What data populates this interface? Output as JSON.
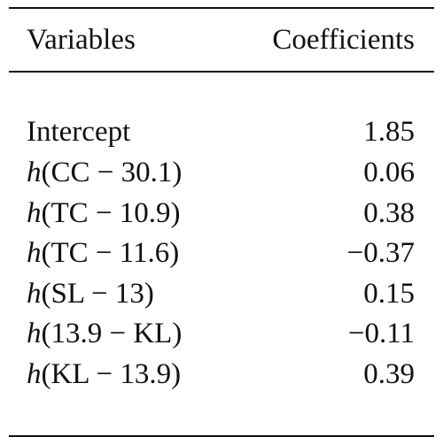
{
  "table": {
    "headers": {
      "variables": "Variables",
      "coefficients": "Coefficients"
    },
    "rows": [
      {
        "fn": "",
        "arg": "Intercept",
        "coef": "1.85"
      },
      {
        "fn": "h",
        "arg": "(CC − 30.1)",
        "coef": "0.06"
      },
      {
        "fn": "h",
        "arg": "(TC − 10.9)",
        "coef": "0.38"
      },
      {
        "fn": "h",
        "arg": "(TC − 11.6)",
        "coef": "−0.37"
      },
      {
        "fn": "h",
        "arg": "(SL − 13)",
        "coef": "0.15"
      },
      {
        "fn": "h",
        "arg": "(13.9 − KL)",
        "coef": "−0.11"
      },
      {
        "fn": "h",
        "arg": "(KL − 13.9)",
        "coef": "0.39"
      }
    ]
  }
}
